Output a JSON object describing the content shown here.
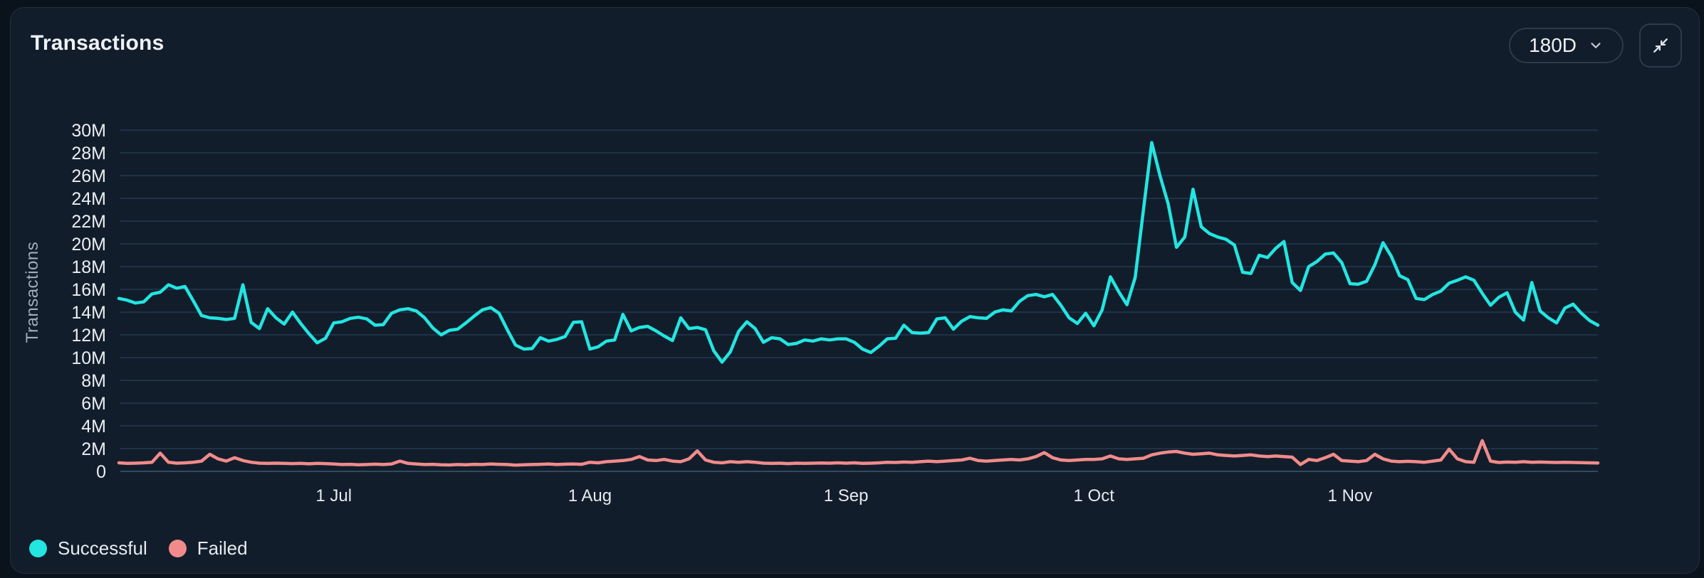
{
  "header": {
    "title": "Transactions",
    "range_selector": {
      "value": "180D",
      "icon": "chevron-down-icon"
    },
    "collapse_button": {
      "icon": "collapse-arrows-icon"
    }
  },
  "chart_data": {
    "type": "line",
    "title": "Transactions",
    "ylabel": "Transactions",
    "xlabel": "",
    "values_unit": "millions",
    "ylim": [
      0,
      30000000
    ],
    "grid": "horizontal",
    "legend_position": "bottom-left",
    "y_ticks_m": [
      0,
      2,
      4,
      6,
      8,
      10,
      12,
      14,
      16,
      18,
      20,
      22,
      24,
      26,
      28,
      30
    ],
    "x_ticks": [
      {
        "label": "1 Jul",
        "day_index": 26
      },
      {
        "label": "1 Aug",
        "day_index": 57
      },
      {
        "label": "1 Sep",
        "day_index": 88
      },
      {
        "label": "1 Oct",
        "day_index": 118
      },
      {
        "label": "1 Nov",
        "day_index": 149
      }
    ],
    "x_range_days": 180,
    "series": [
      {
        "name": "Successful",
        "color": "#23e5e1",
        "values_m": [
          15.2,
          15.05,
          14.8,
          14.9,
          15.6,
          15.75,
          16.4,
          16.1,
          16.25,
          15.0,
          13.7,
          13.5,
          13.45,
          13.35,
          13.45,
          16.4,
          13.1,
          12.55,
          14.3,
          13.5,
          12.95,
          14.0,
          13.0,
          12.1,
          11.3,
          11.7,
          13.05,
          13.15,
          13.45,
          13.55,
          13.4,
          12.85,
          12.9,
          13.9,
          14.2,
          14.3,
          14.1,
          13.5,
          12.6,
          12.0,
          12.4,
          12.5,
          13.05,
          13.65,
          14.2,
          14.4,
          13.9,
          12.45,
          11.1,
          10.75,
          10.8,
          11.75,
          11.45,
          11.6,
          11.85,
          13.1,
          13.15,
          10.75,
          10.95,
          11.45,
          11.55,
          13.8,
          12.35,
          12.65,
          12.75,
          12.35,
          11.9,
          11.5,
          13.5,
          12.55,
          12.65,
          12.45,
          10.6,
          9.6,
          10.5,
          12.3,
          13.15,
          12.55,
          11.35,
          11.75,
          11.65,
          11.15,
          11.25,
          11.55,
          11.45,
          11.65,
          11.55,
          11.65,
          11.65,
          11.35,
          10.75,
          10.45,
          11.0,
          11.65,
          11.7,
          12.85,
          12.2,
          12.15,
          12.2,
          13.4,
          13.5,
          12.5,
          13.2,
          13.6,
          13.5,
          13.45,
          14.0,
          14.2,
          14.1,
          14.95,
          15.45,
          15.55,
          15.35,
          15.55,
          14.6,
          13.5,
          13.0,
          13.9,
          12.8,
          14.2,
          17.1,
          15.8,
          14.65,
          17.05,
          23.0,
          28.9,
          26.0,
          23.5,
          19.7,
          20.6,
          24.8,
          21.5,
          20.9,
          20.6,
          20.4,
          19.9,
          17.5,
          17.4,
          19.0,
          18.8,
          19.6,
          20.2,
          16.6,
          15.9,
          18.0,
          18.45,
          19.1,
          19.2,
          18.35,
          16.5,
          16.45,
          16.7,
          18.15,
          20.1,
          18.9,
          17.2,
          16.85,
          15.2,
          15.1,
          15.55,
          15.85,
          16.55,
          16.8,
          17.1,
          16.8,
          15.65,
          14.6,
          15.3,
          15.7,
          14.0,
          13.3,
          16.6,
          14.1,
          13.5,
          13.05,
          14.35,
          14.7,
          13.9,
          13.25,
          12.85
        ]
      },
      {
        "name": "Failed",
        "color": "#f18b8b",
        "values_m": [
          0.75,
          0.7,
          0.72,
          0.75,
          0.8,
          1.6,
          0.8,
          0.72,
          0.75,
          0.8,
          0.9,
          1.5,
          1.1,
          0.9,
          1.2,
          0.95,
          0.8,
          0.72,
          0.7,
          0.72,
          0.7,
          0.68,
          0.7,
          0.66,
          0.7,
          0.68,
          0.65,
          0.6,
          0.62,
          0.58,
          0.6,
          0.63,
          0.6,
          0.65,
          0.9,
          0.7,
          0.65,
          0.6,
          0.62,
          0.58,
          0.56,
          0.6,
          0.58,
          0.62,
          0.6,
          0.65,
          0.62,
          0.6,
          0.55,
          0.58,
          0.6,
          0.62,
          0.65,
          0.6,
          0.63,
          0.65,
          0.62,
          0.8,
          0.75,
          0.85,
          0.9,
          0.95,
          1.05,
          1.3,
          1.0,
          0.95,
          1.05,
          0.9,
          0.85,
          1.1,
          1.8,
          1.0,
          0.8,
          0.75,
          0.85,
          0.8,
          0.85,
          0.8,
          0.72,
          0.7,
          0.72,
          0.68,
          0.72,
          0.7,
          0.72,
          0.74,
          0.72,
          0.75,
          0.72,
          0.75,
          0.7,
          0.72,
          0.75,
          0.8,
          0.78,
          0.82,
          0.8,
          0.85,
          0.9,
          0.85,
          0.9,
          0.95,
          1.0,
          1.15,
          0.95,
          0.9,
          0.95,
          1.0,
          1.05,
          1.0,
          1.1,
          1.3,
          1.65,
          1.2,
          1.0,
          0.95,
          1.0,
          1.05,
          1.05,
          1.1,
          1.35,
          1.1,
          1.05,
          1.1,
          1.15,
          1.45,
          1.6,
          1.7,
          1.75,
          1.6,
          1.5,
          1.55,
          1.6,
          1.45,
          1.4,
          1.35,
          1.4,
          1.45,
          1.35,
          1.3,
          1.35,
          1.3,
          1.25,
          0.6,
          1.05,
          0.95,
          1.2,
          1.5,
          0.95,
          0.9,
          0.85,
          0.95,
          1.5,
          1.1,
          0.9,
          0.85,
          0.88,
          0.85,
          0.8,
          0.9,
          1.0,
          1.95,
          1.1,
          0.85,
          0.8,
          2.7,
          0.9,
          0.78,
          0.82,
          0.8,
          0.85,
          0.8,
          0.82,
          0.8,
          0.78,
          0.8,
          0.78,
          0.76,
          0.75,
          0.74
        ]
      }
    ]
  },
  "theme": {
    "page_background": "#0a121c",
    "card_background": "#121d2b",
    "gridline_color": "#27405a",
    "tick_text_color": "#e9eef2",
    "successful_color": "#23e5e1",
    "failed_color": "#f18b8b"
  }
}
